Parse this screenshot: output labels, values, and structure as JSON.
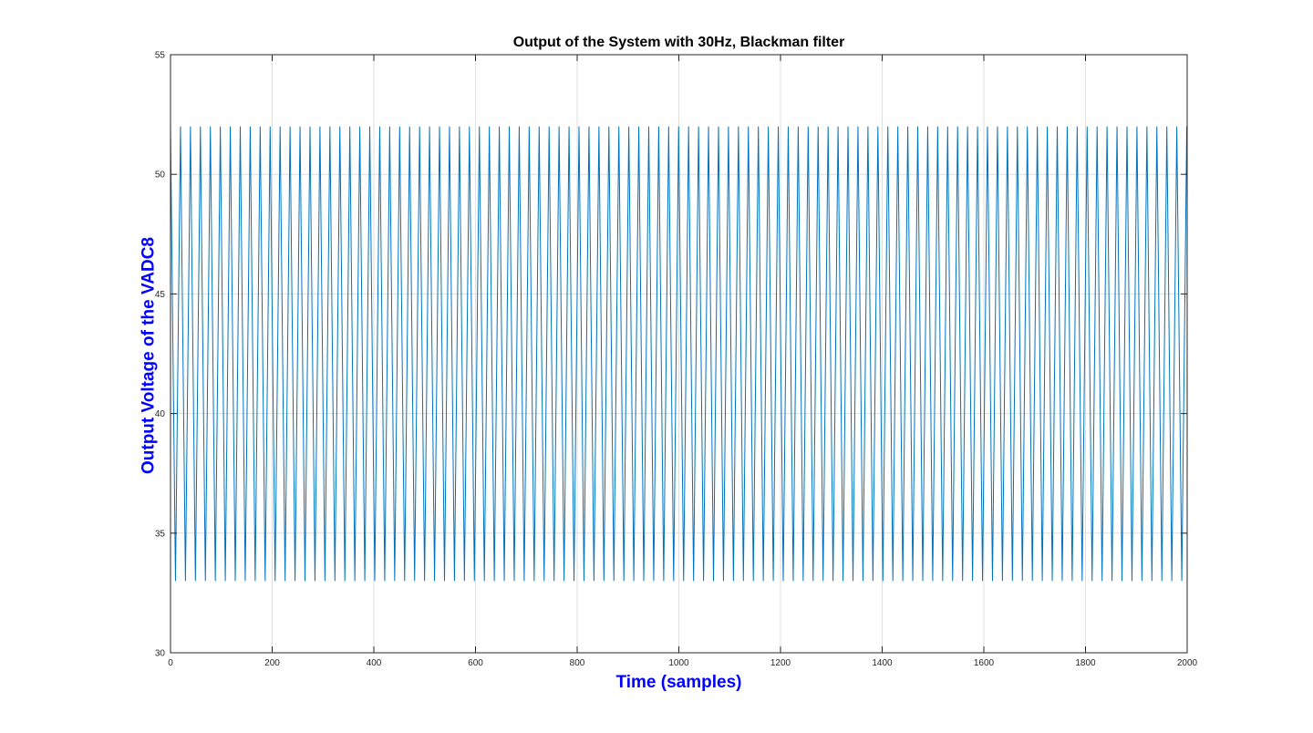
{
  "chart_data": {
    "type": "line",
    "title": "Output of the System with 30Hz, Blackman filter",
    "xlabel": "Time (samples)",
    "ylabel": "Output Voltage of the VADC8",
    "xlim": [
      0,
      2000
    ],
    "ylim": [
      30,
      55
    ],
    "xticks": [
      0,
      200,
      400,
      600,
      800,
      1000,
      1200,
      1400,
      1600,
      1800,
      2000
    ],
    "yticks": [
      30,
      35,
      40,
      45,
      50,
      55
    ],
    "grid": true,
    "legend": "none",
    "series": [
      {
        "signal": "triangle",
        "min": 33,
        "max": 52,
        "period": 19.6,
        "start_value": 52,
        "color": "#0072bd"
      }
    ]
  },
  "colors": {
    "line": "#0072bd",
    "axis_label": "#0000ff",
    "grid": "#dfdfdf",
    "axis": "#262626"
  }
}
